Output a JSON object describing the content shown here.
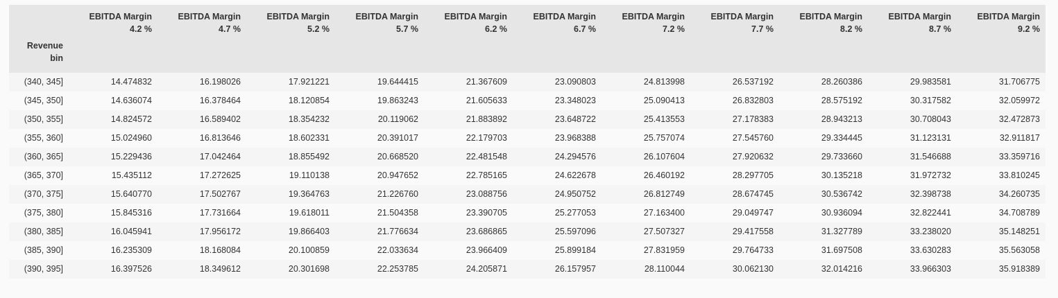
{
  "table": {
    "columns": [
      {
        "line1": "EBITDA Margin",
        "line2": "4.2 %"
      },
      {
        "line1": "EBITDA Margin",
        "line2": "4.7 %"
      },
      {
        "line1": "EBITDA Margin",
        "line2": "5.2 %"
      },
      {
        "line1": "EBITDA Margin",
        "line2": "5.7 %"
      },
      {
        "line1": "EBITDA Margin",
        "line2": "6.2 %"
      },
      {
        "line1": "EBITDA Margin",
        "line2": "6.7 %"
      },
      {
        "line1": "EBITDA Margin",
        "line2": "7.2 %"
      },
      {
        "line1": "EBITDA Margin",
        "line2": "7.7 %"
      },
      {
        "line1": "EBITDA Margin",
        "line2": "8.2 %"
      },
      {
        "line1": "EBITDA Margin",
        "line2": "8.7 %"
      },
      {
        "line1": "EBITDA Margin",
        "line2": "9.2 %"
      }
    ],
    "index_name": {
      "line1": "Revenue",
      "line2": "bin"
    },
    "rows": [
      {
        "label": "(340, 345]",
        "values": [
          "14.474832",
          "16.198026",
          "17.921221",
          "19.644415",
          "21.367609",
          "23.090803",
          "24.813998",
          "26.537192",
          "28.260386",
          "29.983581",
          "31.706775"
        ]
      },
      {
        "label": "(345, 350]",
        "values": [
          "14.636074",
          "16.378464",
          "18.120854",
          "19.863243",
          "21.605633",
          "23.348023",
          "25.090413",
          "26.832803",
          "28.575192",
          "30.317582",
          "32.059972"
        ]
      },
      {
        "label": "(350, 355]",
        "values": [
          "14.824572",
          "16.589402",
          "18.354232",
          "20.119062",
          "21.883892",
          "23.648722",
          "25.413553",
          "27.178383",
          "28.943213",
          "30.708043",
          "32.472873"
        ]
      },
      {
        "label": "(355, 360]",
        "values": [
          "15.024960",
          "16.813646",
          "18.602331",
          "20.391017",
          "22.179703",
          "23.968388",
          "25.757074",
          "27.545760",
          "29.334445",
          "31.123131",
          "32.911817"
        ]
      },
      {
        "label": "(360, 365]",
        "values": [
          "15.229436",
          "17.042464",
          "18.855492",
          "20.668520",
          "22.481548",
          "24.294576",
          "26.107604",
          "27.920632",
          "29.733660",
          "31.546688",
          "33.359716"
        ]
      },
      {
        "label": "(365, 370]",
        "values": [
          "15.435112",
          "17.272625",
          "19.110138",
          "20.947652",
          "22.785165",
          "24.622678",
          "26.460192",
          "28.297705",
          "30.135218",
          "31.972732",
          "33.810245"
        ]
      },
      {
        "label": "(370, 375]",
        "values": [
          "15.640770",
          "17.502767",
          "19.364763",
          "21.226760",
          "23.088756",
          "24.950752",
          "26.812749",
          "28.674745",
          "30.536742",
          "32.398738",
          "34.260735"
        ]
      },
      {
        "label": "(375, 380]",
        "values": [
          "15.845316",
          "17.731664",
          "19.618011",
          "21.504358",
          "23.390705",
          "25.277053",
          "27.163400",
          "29.049747",
          "30.936094",
          "32.822441",
          "34.708789"
        ]
      },
      {
        "label": "(380, 385]",
        "values": [
          "16.045941",
          "17.956172",
          "19.866403",
          "21.776634",
          "23.686865",
          "25.597096",
          "27.507327",
          "29.417558",
          "31.327789",
          "33.238020",
          "35.148251"
        ]
      },
      {
        "label": "(385, 390]",
        "values": [
          "16.235309",
          "18.168084",
          "20.100859",
          "22.033634",
          "23.966409",
          "25.899184",
          "27.831959",
          "29.764733",
          "31.697508",
          "33.630283",
          "35.563058"
        ]
      },
      {
        "label": "(390, 395]",
        "values": [
          "16.397526",
          "18.349612",
          "20.301698",
          "22.253785",
          "24.205871",
          "26.157957",
          "28.110044",
          "30.062130",
          "32.014216",
          "33.966303",
          "35.918389"
        ]
      }
    ]
  }
}
